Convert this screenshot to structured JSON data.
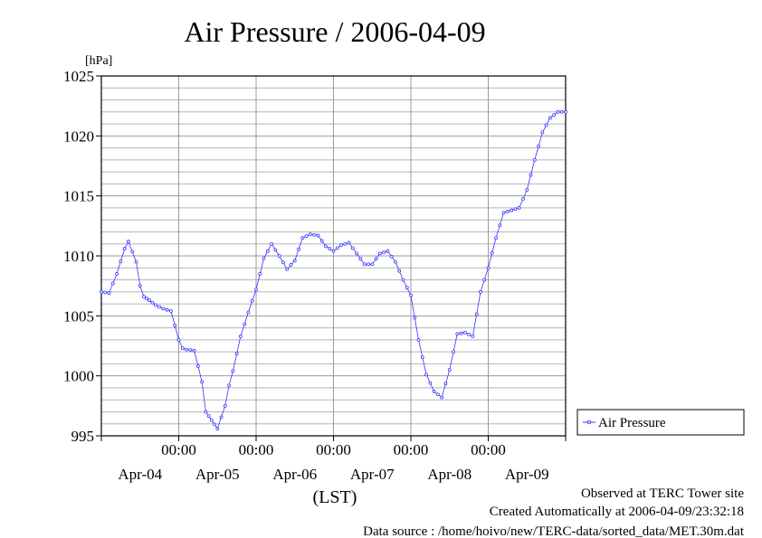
{
  "chart_data": {
    "type": "line",
    "title": "Air Pressure / 2006-04-09",
    "ylabel": "[hPa]",
    "xlabel": "(LST)",
    "ylim": [
      995,
      1025
    ],
    "y_ticks": [
      "995",
      "1000",
      "1005",
      "1010",
      "1015",
      "1020",
      "1025"
    ],
    "x_range_days": [
      0,
      6
    ],
    "x_time_ticks": [
      "00:00",
      "00:00",
      "00:00",
      "00:00",
      "00:00"
    ],
    "x_date_labels": [
      "Apr-04",
      "Apr-05",
      "Apr-06",
      "Apr-07",
      "Apr-08",
      "Apr-09"
    ],
    "grid": true,
    "legend_position": "right",
    "series_color": "#3333ff",
    "series": [
      {
        "name": "Air Pressure",
        "x_days": [
          0.0,
          0.1,
          0.2,
          0.3,
          0.35,
          0.45,
          0.5,
          0.55,
          0.62,
          0.7,
          0.8,
          0.9,
          1.0,
          1.05,
          1.1,
          1.2,
          1.3,
          1.35,
          1.5,
          1.6,
          1.65,
          1.7,
          1.8,
          1.9,
          2.0,
          2.1,
          2.2,
          2.3,
          2.4,
          2.5,
          2.6,
          2.7,
          2.8,
          2.9,
          3.0,
          3.1,
          3.2,
          3.3,
          3.4,
          3.5,
          3.6,
          3.7,
          3.8,
          3.9,
          4.0,
          4.1,
          4.2,
          4.3,
          4.4,
          4.5,
          4.6,
          4.7,
          4.8,
          4.9,
          5.0,
          5.1,
          5.2,
          5.3,
          5.4,
          5.5,
          5.6,
          5.7,
          5.8,
          5.9,
          6.0
        ],
        "values": [
          1007.0,
          1006.9,
          1008.5,
          1010.6,
          1011.2,
          1009.5,
          1007.5,
          1006.6,
          1006.3,
          1005.9,
          1005.6,
          1005.4,
          1003.0,
          1002.3,
          1002.2,
          1002.1,
          999.5,
          997.0,
          995.6,
          997.5,
          999.2,
          1000.4,
          1003.3,
          1005.3,
          1007.2,
          1009.8,
          1011.0,
          1010.0,
          1008.9,
          1009.6,
          1011.5,
          1011.8,
          1011.7,
          1010.8,
          1010.4,
          1010.9,
          1011.1,
          1010.2,
          1009.3,
          1009.3,
          1010.2,
          1010.4,
          1009.5,
          1008.0,
          1006.7,
          1003.0,
          1000.1,
          998.7,
          998.2,
          1000.5,
          1003.5,
          1003.6,
          1003.3,
          1007.0,
          1009.0,
          1011.5,
          1013.6,
          1013.8,
          1014.0,
          1015.5,
          1018.0,
          1020.3,
          1021.5,
          1022.0,
          1022.0
        ]
      }
    ]
  },
  "footer": {
    "observed": "Observed at TERC Tower site",
    "created": "Created Automatically at 2006-04-09/23:32:18",
    "source": "Data source : /home/hoivo/new/TERC-data/sorted_data/MET.30m.dat"
  }
}
